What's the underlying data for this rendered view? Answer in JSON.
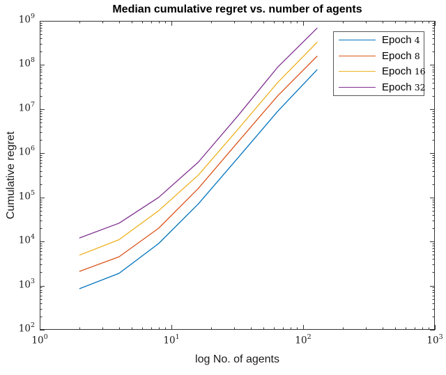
{
  "chart_data": {
    "type": "line",
    "title": "Median cumulative regret vs. number of agents",
    "xlabel": "log No. of agents",
    "ylabel": "Cumulative regret",
    "x_scale": "log",
    "y_scale": "log",
    "xlim": [
      1,
      1000
    ],
    "ylim": [
      100,
      1000000000
    ],
    "tick_base": "10",
    "x_tick_exponents": [
      0,
      1,
      2,
      3
    ],
    "y_tick_exponents": [
      2,
      3,
      4,
      5,
      6,
      7,
      8,
      9
    ],
    "grid": false,
    "legend_position": "top-right",
    "axis_color": "#333333",
    "x": [
      2,
      4,
      8,
      16,
      32,
      64,
      128
    ],
    "series": [
      {
        "name": "Epoch 4",
        "color": "#0072BD",
        "values": [
          850,
          1900,
          9000,
          71000,
          790000,
          8900000,
          79000000
        ]
      },
      {
        "name": "Epoch 8",
        "color": "#D95319",
        "values": [
          2100,
          4500,
          20000,
          160000,
          1800000,
          20000000,
          160000000
        ]
      },
      {
        "name": "Epoch 16",
        "color": "#EDB120",
        "values": [
          4900,
          11000,
          50000,
          320000,
          3500000,
          40000000,
          330000000
        ]
      },
      {
        "name": "Epoch 32",
        "color": "#7E2F8E",
        "values": [
          12000,
          26000,
          100000,
          630000,
          7100000,
          89000000,
          690000000
        ]
      }
    ]
  }
}
